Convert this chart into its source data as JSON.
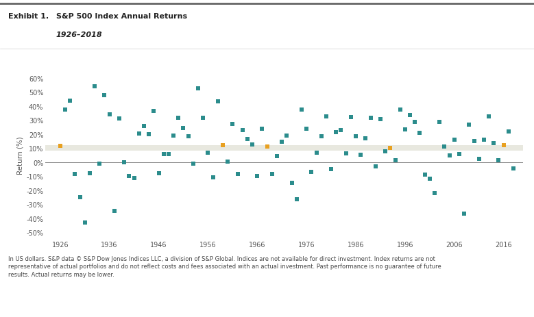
{
  "title_exhibit": "Exhibit 1.",
  "title_main": "S&P 500 Index Annual Returns",
  "title_sub": "1926–2018",
  "ylabel": "Return (%)",
  "footnote": "In US dollars. S&P data © S&P Dow Jones Indices LLC, a division of S&P Global. Indices are not available for direct investment. Index returns are not\nrepresentative of actual portfolios and do not reflect costs and fees associated with an actual investment. Past performance is no guarantee of future\nresults. Actual returns may be lower.",
  "band_low": 8.0,
  "band_high": 12.0,
  "yticks": [
    -50,
    -40,
    -30,
    -20,
    -10,
    0,
    10,
    20,
    30,
    40,
    50,
    60
  ],
  "ytick_labels": [
    "-50%",
    "-40%",
    "-30%",
    "-20%",
    "-10%",
    "0%",
    "10%",
    "20%",
    "30%",
    "40%",
    "50%",
    "60%"
  ],
  "xticks": [
    1926,
    1936,
    1946,
    1956,
    1966,
    1976,
    1986,
    1996,
    2006,
    2016
  ],
  "teal_color": "#2B8C8C",
  "orange_color": "#E8A020",
  "band_color": "#E8E8DF",
  "background_color": "#FFFFFF",
  "years": [
    1926,
    1927,
    1928,
    1929,
    1930,
    1931,
    1932,
    1933,
    1934,
    1935,
    1936,
    1937,
    1938,
    1939,
    1940,
    1941,
    1942,
    1943,
    1944,
    1945,
    1946,
    1947,
    1948,
    1949,
    1950,
    1951,
    1952,
    1953,
    1954,
    1955,
    1956,
    1957,
    1958,
    1959,
    1960,
    1961,
    1962,
    1963,
    1964,
    1965,
    1966,
    1967,
    1968,
    1969,
    1970,
    1971,
    1972,
    1973,
    1974,
    1975,
    1976,
    1977,
    1978,
    1979,
    1980,
    1981,
    1982,
    1983,
    1984,
    1985,
    1986,
    1987,
    1988,
    1989,
    1990,
    1991,
    1992,
    1993,
    1994,
    1995,
    1996,
    1997,
    1998,
    1999,
    2000,
    2001,
    2002,
    2003,
    2004,
    2005,
    2006,
    2007,
    2008,
    2009,
    2010,
    2011,
    2012,
    2013,
    2014,
    2015,
    2016,
    2017,
    2018
  ],
  "returns": [
    11.6,
    37.5,
    43.6,
    -8.4,
    -24.9,
    -43.3,
    -8.2,
    54.0,
    -1.4,
    47.7,
    33.9,
    -35.0,
    31.1,
    -0.4,
    -9.8,
    -11.6,
    20.3,
    25.9,
    19.7,
    36.4,
    -8.1,
    5.7,
    5.5,
    18.8,
    31.7,
    24.0,
    18.4,
    -1.0,
    52.6,
    31.6,
    6.6,
    -10.8,
    43.4,
    12.0,
    0.5,
    26.9,
    -8.7,
    22.8,
    16.5,
    12.5,
    -10.1,
    23.9,
    11.0,
    -8.5,
    4.0,
    14.3,
    19.0,
    -14.7,
    -26.5,
    37.2,
    23.8,
    -7.2,
    6.6,
    18.4,
    32.4,
    -4.9,
    21.4,
    22.5,
    6.3,
    32.2,
    18.5,
    5.2,
    16.8,
    31.5,
    -3.1,
    30.5,
    7.7,
    10.1,
    1.3,
    37.6,
    23.0,
    33.4,
    28.6,
    21.0,
    -9.1,
    -11.9,
    -22.1,
    28.7,
    10.9,
    4.9,
    15.8,
    5.5,
    -37.0,
    26.5,
    15.1,
    2.1,
    16.0,
    32.4,
    13.7,
    1.4,
    12.0,
    21.8,
    -4.4
  ],
  "orange_years": [
    1926,
    1959,
    1968,
    1993,
    2016
  ]
}
